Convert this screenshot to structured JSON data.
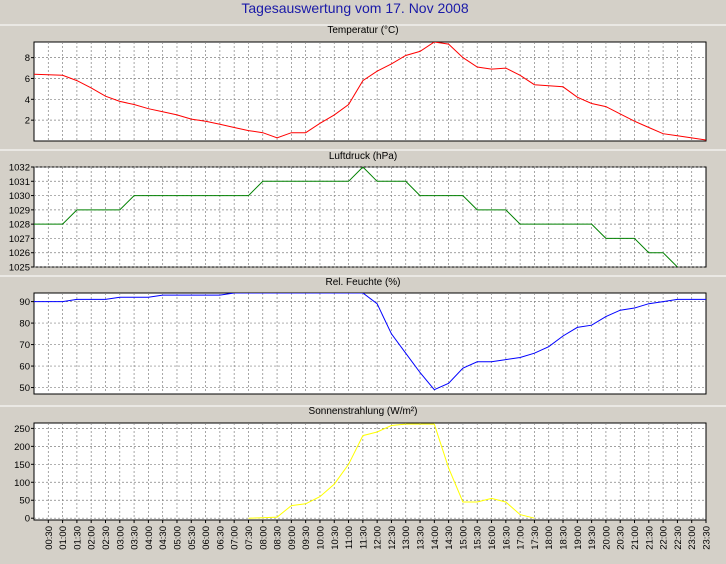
{
  "title": "Tagesauswertung vom 17. Nov 2008",
  "colors": {
    "title": "#1a1aa8",
    "background": "#d4d0c8",
    "plot_bg": "#ffffff",
    "grid": "#808080",
    "temperature": "#ff0000",
    "pressure": "#008000",
    "humidity": "#0000ff",
    "radiation": "#ffff00"
  },
  "x_tick_labels": [
    "00:30",
    "01:00",
    "01:30",
    "02:00",
    "02:30",
    "03:00",
    "03:30",
    "04:00",
    "04:30",
    "05:00",
    "05:30",
    "06:00",
    "06:30",
    "07:00",
    "07:30",
    "08:00",
    "08:30",
    "09:00",
    "09:30",
    "10:00",
    "10:30",
    "11:00",
    "11:30",
    "12:00",
    "12:30",
    "13:00",
    "13:30",
    "14:00",
    "14:30",
    "15:00",
    "15:30",
    "16:00",
    "16:30",
    "17:00",
    "17:30",
    "18:00",
    "18:30",
    "19:00",
    "19:30",
    "20:00",
    "20:30",
    "21:00",
    "21:30",
    "22:00",
    "22:30",
    "23:00",
    "23:30"
  ],
  "chart_data": [
    {
      "type": "line",
      "title": "Temperatur (°C)",
      "ylim": [
        0,
        9.5
      ],
      "yticks": [
        2,
        4,
        6,
        8
      ],
      "grid": true,
      "series": [
        {
          "color": "#ff0000",
          "x": [
            0.0,
            1.0,
            1.5,
            2.0,
            2.5,
            3.0,
            3.5,
            4.0,
            4.5,
            5.0,
            5.5,
            6.0,
            6.5,
            7.0,
            7.5,
            8.0,
            8.5,
            9.0,
            9.5,
            10.0,
            10.5,
            11.0,
            11.5,
            12.0,
            12.5,
            13.0,
            13.5,
            14.0,
            14.5,
            15.0,
            15.5,
            16.0,
            16.5,
            17.0,
            17.5,
            18.0,
            18.5,
            19.0,
            19.5,
            20.0,
            20.5,
            21.0,
            21.5,
            22.0,
            22.5,
            23.0,
            23.5
          ],
          "y": [
            6.4,
            6.3,
            5.8,
            5.1,
            4.3,
            3.8,
            3.5,
            3.1,
            2.8,
            2.5,
            2.1,
            1.9,
            1.6,
            1.3,
            1.0,
            0.8,
            0.3,
            0.8,
            0.8,
            1.7,
            2.5,
            3.5,
            5.8,
            6.7,
            7.4,
            8.2,
            8.6,
            9.5,
            9.3,
            8.0,
            7.1,
            6.9,
            7.0,
            6.3,
            5.4,
            5.3,
            5.2,
            4.2,
            3.6,
            3.3,
            2.6,
            1.9,
            1.3,
            0.7,
            0.5,
            0.3,
            0.1
          ]
        }
      ]
    },
    {
      "type": "line",
      "title": "Luftdruck (hPa)",
      "ylim": [
        1025,
        1032
      ],
      "yticks": [
        1025,
        1026,
        1027,
        1028,
        1029,
        1030,
        1031,
        1032
      ],
      "grid": true,
      "series": [
        {
          "color": "#008000",
          "x": [
            0.0,
            1.0,
            1.5,
            2.0,
            2.5,
            3.0,
            3.5,
            4.0,
            4.5,
            5.0,
            5.5,
            6.0,
            6.5,
            7.0,
            7.5,
            8.0,
            8.5,
            9.0,
            9.5,
            10.0,
            10.5,
            11.0,
            11.5,
            12.0,
            12.5,
            13.0,
            13.5,
            14.0,
            14.5,
            15.0,
            15.5,
            16.0,
            16.5,
            17.0,
            17.5,
            18.0,
            18.5,
            19.0,
            19.5,
            20.0,
            20.5,
            21.0,
            21.5,
            22.0,
            22.5
          ],
          "y": [
            1028,
            1028,
            1029,
            1029,
            1029,
            1029,
            1030,
            1030,
            1030,
            1030,
            1030,
            1030,
            1030,
            1030,
            1030,
            1031,
            1031,
            1031,
            1031,
            1031,
            1031,
            1031,
            1032,
            1031,
            1031,
            1031,
            1030,
            1030,
            1030,
            1030,
            1029,
            1029,
            1029,
            1028,
            1028,
            1028,
            1028,
            1028,
            1028,
            1027,
            1027,
            1027,
            1026,
            1026,
            1025
          ]
        }
      ]
    },
    {
      "type": "line",
      "title": "Rel. Feuchte (%)",
      "ylim": [
        47,
        94
      ],
      "yticks": [
        50,
        60,
        70,
        80,
        90
      ],
      "grid": true,
      "series": [
        {
          "color": "#0000ff",
          "x": [
            0.0,
            1.0,
            1.5,
            2.0,
            2.5,
            3.0,
            3.5,
            4.0,
            4.5,
            5.0,
            5.5,
            6.0,
            6.5,
            7.0,
            7.5,
            8.0,
            8.5,
            9.0,
            9.5,
            10.0,
            10.5,
            11.0,
            11.5,
            12.0,
            12.5,
            13.0,
            13.5,
            14.0,
            14.5,
            15.0,
            15.5,
            16.0,
            16.5,
            17.0,
            17.5,
            18.0,
            18.5,
            19.0,
            19.5,
            20.0,
            20.5,
            21.0,
            21.5,
            22.0,
            22.5,
            23.0,
            23.5
          ],
          "y": [
            90,
            90,
            91,
            91,
            91,
            92,
            92,
            92,
            93,
            93,
            93,
            93,
            93,
            94,
            94,
            94,
            94,
            94,
            94,
            94,
            94,
            94,
            94,
            89,
            75,
            66,
            57,
            49,
            52,
            59,
            62,
            62,
            63,
            64,
            66,
            69,
            74,
            78,
            79,
            83,
            86,
            87,
            89,
            90,
            91,
            91,
            91
          ]
        }
      ]
    },
    {
      "type": "line",
      "title": "Sonnenstrahlung (W/m²)",
      "ylim": [
        -5,
        265
      ],
      "yticks": [
        0,
        50,
        100,
        150,
        200,
        250
      ],
      "grid": true,
      "series": [
        {
          "color": "#ffff00",
          "x": [
            7.5,
            8.0,
            8.5,
            9.0,
            9.5,
            10.0,
            10.5,
            11.0,
            11.5,
            12.0,
            12.5,
            13.0,
            13.5,
            14.0,
            14.5,
            15.0,
            15.5,
            16.0,
            16.5,
            17.0,
            17.5
          ],
          "y": [
            0,
            1,
            3,
            35,
            40,
            60,
            95,
            150,
            230,
            240,
            258,
            262,
            262,
            262,
            140,
            45,
            45,
            55,
            45,
            10,
            0
          ]
        }
      ]
    }
  ]
}
